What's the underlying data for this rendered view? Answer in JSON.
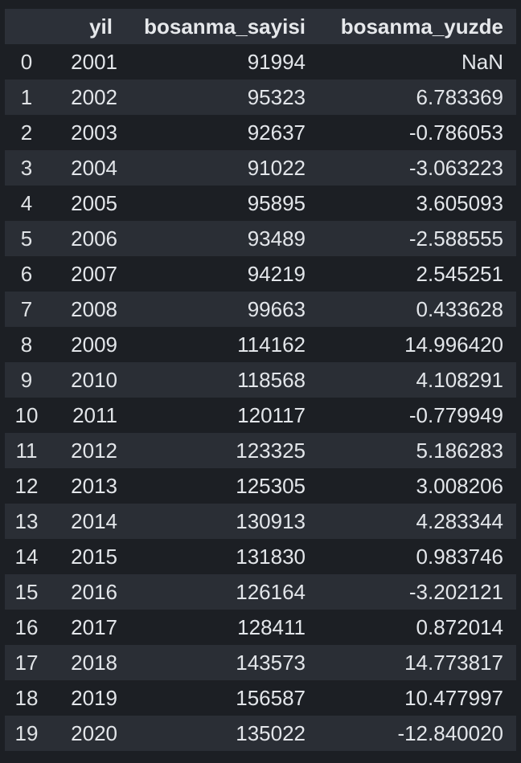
{
  "dataframe": {
    "columns": [
      "yil",
      "bosanma_sayisi",
      "bosanma_yuzde"
    ],
    "index": [
      "0",
      "1",
      "2",
      "3",
      "4",
      "5",
      "6",
      "7",
      "8",
      "9",
      "10",
      "11",
      "12",
      "13",
      "14",
      "15",
      "16",
      "17",
      "18",
      "19"
    ],
    "rows": [
      [
        "2001",
        "91994",
        "NaN"
      ],
      [
        "2002",
        "95323",
        "6.783369"
      ],
      [
        "2003",
        "92637",
        "-0.786053"
      ],
      [
        "2004",
        "91022",
        "-3.063223"
      ],
      [
        "2005",
        "95895",
        "3.605093"
      ],
      [
        "2006",
        "93489",
        "-2.588555"
      ],
      [
        "2007",
        "94219",
        "2.545251"
      ],
      [
        "2008",
        "99663",
        "0.433628"
      ],
      [
        "2009",
        "114162",
        "14.996420"
      ],
      [
        "2010",
        "118568",
        "4.108291"
      ],
      [
        "2011",
        "120117",
        "-0.779949"
      ],
      [
        "2012",
        "123325",
        "5.186283"
      ],
      [
        "2013",
        "125305",
        "3.008206"
      ],
      [
        "2014",
        "130913",
        "4.283344"
      ],
      [
        "2015",
        "131830",
        "0.983746"
      ],
      [
        "2016",
        "126164",
        "-3.202121"
      ],
      [
        "2017",
        "128411",
        "0.872014"
      ],
      [
        "2018",
        "143573",
        "14.773817"
      ],
      [
        "2019",
        "156587",
        "10.477997"
      ],
      [
        "2020",
        "135022",
        "-12.840020"
      ]
    ]
  },
  "colors": {
    "background": "#1c1f24",
    "header_background": "#2c3038",
    "stripe_background": "#2a2e35",
    "text": "#e3e6ea"
  }
}
